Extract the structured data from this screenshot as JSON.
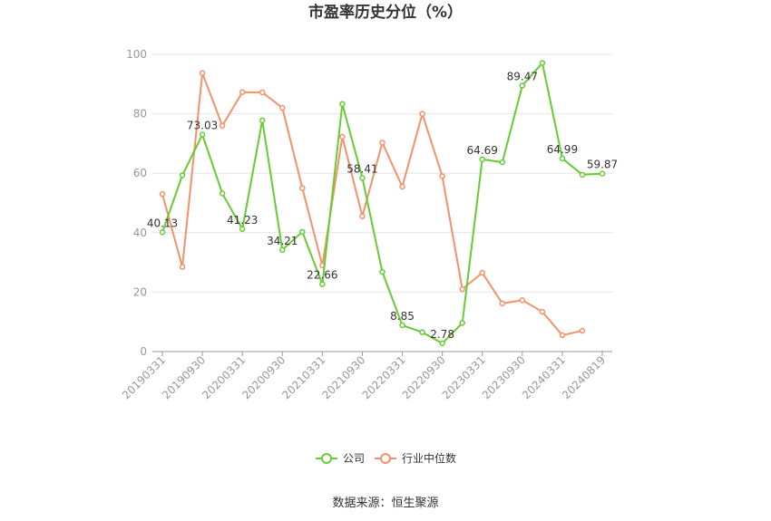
{
  "chart_data": {
    "type": "line",
    "title": "市盈率历史分位（%）",
    "source": "数据来源：恒生聚源",
    "ylim": [
      0,
      100
    ],
    "yticks": [
      0,
      20,
      40,
      60,
      80,
      100
    ],
    "xticks": [
      "20190331",
      "20190930",
      "20200331",
      "20200930",
      "20210331",
      "20210930",
      "20220331",
      "20220930",
      "20230331",
      "20230930",
      "20240331",
      "20240819"
    ],
    "grid": true,
    "legend_position": "bottom",
    "series": [
      {
        "name": "公司",
        "color": "#66cc33",
        "values": [
          40.13,
          59.3,
          73.03,
          53.2,
          41.23,
          77.8,
          34.21,
          40.3,
          22.66,
          83.3,
          58.41,
          26.8,
          8.85,
          6.5,
          2.78,
          9.6,
          64.69,
          63.7,
          89.47,
          97.1,
          64.99,
          59.5,
          59.87
        ],
        "labeled": {
          "0": "40.13",
          "2": "73.03",
          "4": "41.23",
          "6": "34.21",
          "8": "22.66",
          "10": "58.41",
          "12": "8.85",
          "14": "2.78",
          "16": "64.69",
          "18": "89.47",
          "20": "64.99",
          "22": "59.87"
        }
      },
      {
        "name": "行业中位数",
        "color": "#f5916a",
        "values": [
          53.0,
          28.5,
          93.7,
          76.0,
          87.3,
          87.2,
          82.0,
          55.0,
          29.0,
          72.3,
          45.5,
          70.3,
          55.5,
          80.0,
          59.0,
          21.0,
          26.5,
          16.2,
          17.3,
          13.4,
          5.5,
          7.0,
          null
        ]
      }
    ]
  }
}
